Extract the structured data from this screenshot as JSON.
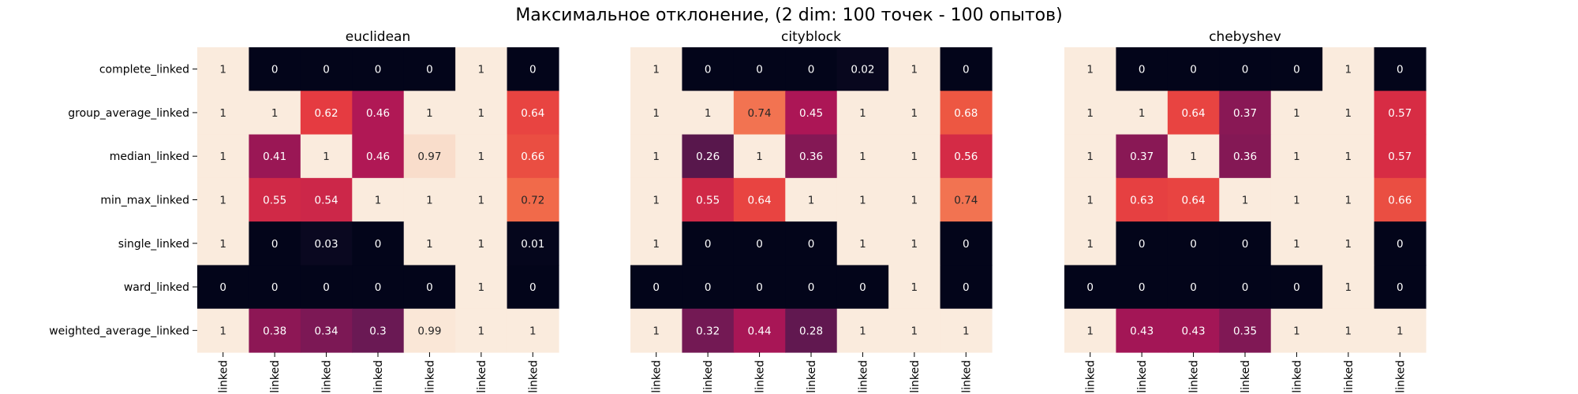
{
  "figure": {
    "title": "Максимальное отклонение, (2 dim: 100 точек - 100 опытов)"
  },
  "colors": {
    "low": "#03051a",
    "mid": "#cb1b4f",
    "high": "#faebdd"
  },
  "chart_data": [
    {
      "type": "heatmap",
      "title": "euclidean",
      "rows": [
        "complete_linked",
        "group_average_linked",
        "median_linked",
        "min_max_linked",
        "single_linked",
        "ward_linked",
        "weighted_average_linked"
      ],
      "columns": [
        "linked",
        "linked",
        "linked",
        "linked",
        "linked",
        "linked",
        "linked"
      ],
      "values": [
        [
          1,
          0,
          0,
          0,
          0,
          1,
          0
        ],
        [
          1,
          1,
          0.62,
          0.46,
          1,
          1,
          0.64
        ],
        [
          1,
          0.41,
          1,
          0.46,
          0.97,
          1,
          0.66
        ],
        [
          1,
          0.55,
          0.54,
          1,
          1,
          1,
          0.72
        ],
        [
          1,
          0,
          0.03,
          0,
          1,
          1,
          0.01
        ],
        [
          0,
          0,
          0,
          0,
          0,
          1,
          0
        ],
        [
          1,
          0.38,
          0.34,
          0.3,
          0.99,
          1,
          1
        ]
      ],
      "vmin": 0,
      "vmax": 1
    },
    {
      "type": "heatmap",
      "title": "cityblock",
      "rows": [
        "complete_linked",
        "group_average_linked",
        "median_linked",
        "min_max_linked",
        "single_linked",
        "ward_linked",
        "weighted_average_linked"
      ],
      "columns": [
        "linked",
        "linked",
        "linked",
        "linked",
        "linked",
        "linked",
        "linked"
      ],
      "values": [
        [
          1,
          0,
          0,
          0,
          0.02,
          1,
          0
        ],
        [
          1,
          1,
          0.74,
          0.45,
          1,
          1,
          0.68
        ],
        [
          1,
          0.26,
          1,
          0.36,
          1,
          1,
          0.56
        ],
        [
          1,
          0.55,
          0.64,
          1,
          1,
          1,
          0.74
        ],
        [
          1,
          0,
          0,
          0,
          1,
          1,
          0
        ],
        [
          0,
          0,
          0,
          0,
          0,
          1,
          0
        ],
        [
          1,
          0.32,
          0.44,
          0.28,
          1,
          1,
          1
        ]
      ],
      "vmin": 0,
      "vmax": 1
    },
    {
      "type": "heatmap",
      "title": "chebyshev",
      "rows": [
        "complete_linked",
        "group_average_linked",
        "median_linked",
        "min_max_linked",
        "single_linked",
        "ward_linked",
        "weighted_average_linked"
      ],
      "columns": [
        "linked",
        "linked",
        "linked",
        "linked",
        "linked",
        "linked",
        "linked"
      ],
      "values": [
        [
          1,
          0,
          0,
          0,
          0,
          1,
          0
        ],
        [
          1,
          1,
          0.64,
          0.37,
          1,
          1,
          0.57
        ],
        [
          1,
          0.37,
          1,
          0.36,
          1,
          1,
          0.57
        ],
        [
          1,
          0.63,
          0.64,
          1,
          1,
          1,
          0.66
        ],
        [
          1,
          0,
          0,
          0,
          1,
          1,
          0
        ],
        [
          0,
          0,
          0,
          0,
          0,
          1,
          0
        ],
        [
          1,
          0.43,
          0.43,
          0.35,
          1,
          1,
          1
        ]
      ],
      "vmin": 0,
      "vmax": 1
    }
  ]
}
